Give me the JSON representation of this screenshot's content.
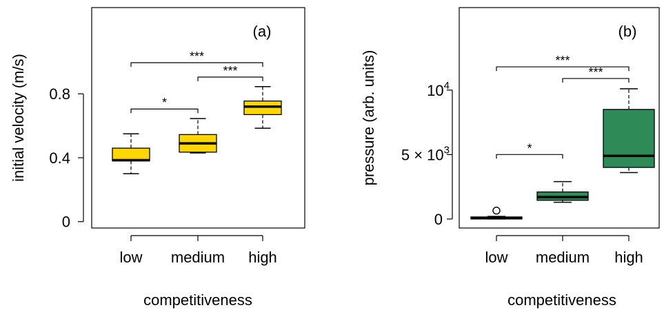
{
  "chart_data": [
    {
      "type": "boxplot",
      "panel_label": "(a)",
      "xlabel": "competitiveness",
      "ylabel": "initial velocity (m/s)",
      "categories": [
        "low",
        "medium",
        "high"
      ],
      "ylim": [
        -0.04,
        1.34
      ],
      "yticks": [
        {
          "value": 0,
          "label": "0"
        },
        {
          "value": 0.4,
          "label": "0.4"
        },
        {
          "value": 0.8,
          "label": "0.8"
        }
      ],
      "box_color": "#FFD700",
      "boxes": [
        {
          "category": "low",
          "whisker_low": 0.3,
          "q1": 0.38,
          "median": 0.385,
          "q3": 0.46,
          "whisker_high": 0.55,
          "outliers": []
        },
        {
          "category": "medium",
          "whisker_low": 0.43,
          "q1": 0.435,
          "median": 0.49,
          "q3": 0.545,
          "whisker_high": 0.645,
          "outliers": []
        },
        {
          "category": "high",
          "whisker_low": 0.585,
          "q1": 0.67,
          "median": 0.72,
          "q3": 0.755,
          "whisker_high": 0.845,
          "outliers": []
        }
      ],
      "significance": [
        {
          "from": 0,
          "to": 1,
          "y": 0.705,
          "label": "*"
        },
        {
          "from": 1,
          "to": 2,
          "y": 0.905,
          "label": "***"
        },
        {
          "from": 0,
          "to": 2,
          "y": 0.995,
          "label": "***"
        }
      ]
    },
    {
      "type": "boxplot",
      "panel_label": "(b)",
      "xlabel": "competitiveness",
      "ylabel": "pressure (arb. units)",
      "categories": [
        "low",
        "medium",
        "high"
      ],
      "ylim": [
        -700,
        16400
      ],
      "yticks": [
        {
          "value": 0,
          "label": "0",
          "mantissa": "",
          "exponent": ""
        },
        {
          "value": 5000,
          "label": "5 × 10^3",
          "mantissa": "5 × 10",
          "exponent": "3"
        },
        {
          "value": 10000,
          "label": "10^4",
          "mantissa": "10",
          "exponent": "4"
        }
      ],
      "box_color": "#2E8B57",
      "boxes": [
        {
          "category": "low",
          "whisker_low": 0,
          "q1": 0,
          "median": 60,
          "q3": 160,
          "whisker_high": 200,
          "outliers": [
            650
          ]
        },
        {
          "category": "medium",
          "whisker_low": 1300,
          "q1": 1450,
          "median": 1700,
          "q3": 2100,
          "whisker_high": 2900,
          "outliers": []
        },
        {
          "category": "high",
          "whisker_low": 3600,
          "q1": 4000,
          "median": 4900,
          "q3": 8500,
          "whisker_high": 10100,
          "outliers": []
        }
      ],
      "significance": [
        {
          "from": 0,
          "to": 1,
          "y": 5000,
          "label": "*"
        },
        {
          "from": 1,
          "to": 2,
          "y": 10900,
          "label": "***"
        },
        {
          "from": 0,
          "to": 2,
          "y": 11800,
          "label": "***"
        }
      ]
    }
  ]
}
